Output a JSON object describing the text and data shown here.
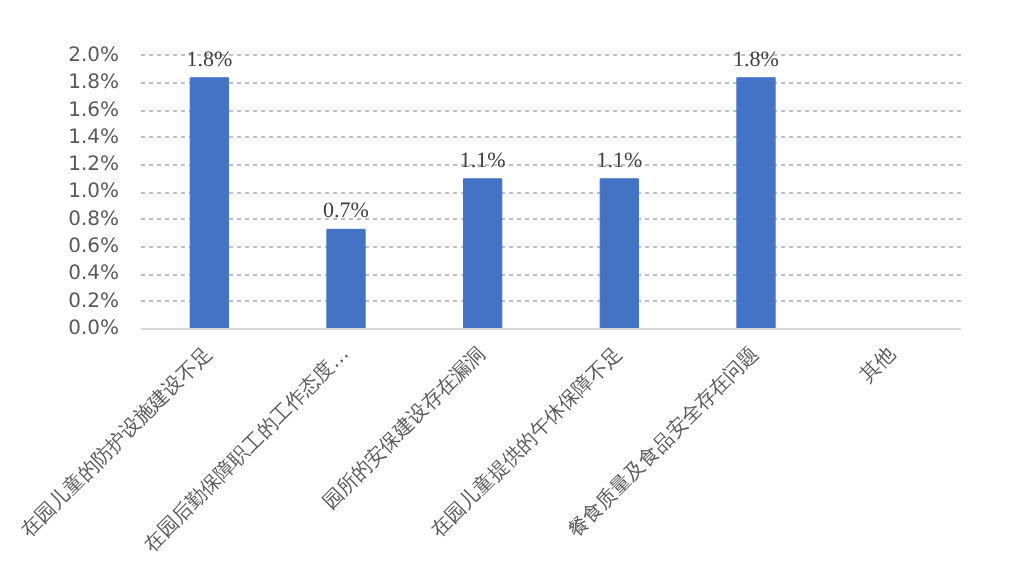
{
  "chart_data": {
    "type": "bar",
    "categories": [
      "在园儿童的防护设施建设不足",
      "在园后勤保障职工的工作态度…",
      "园所的安保建设存在漏洞",
      "在园儿童提供的午休保障不足",
      "餐食质量及食品安全存在问题",
      "其他"
    ],
    "values": [
      1.84,
      0.73,
      1.1,
      1.1,
      1.84,
      0
    ],
    "value_labels": [
      "1.8%",
      "0.7%",
      "1.1%",
      "1.1%",
      "1.8%",
      null
    ],
    "color": "#4472c4",
    "ylim": [
      0,
      2.0
    ],
    "yticks": [
      {
        "value": 0,
        "label": "0.0%"
      },
      {
        "value": 0.2,
        "label": "0.2%"
      },
      {
        "value": 0.4,
        "label": "0.4%"
      },
      {
        "value": 0.6,
        "label": "0.6%"
      },
      {
        "value": 0.8,
        "label": "0.8%"
      },
      {
        "value": 1.0,
        "label": "1.0%"
      },
      {
        "value": 1.2,
        "label": "1.2%"
      },
      {
        "value": 1.4,
        "label": "1.4%"
      },
      {
        "value": 1.6,
        "label": "1.6%"
      },
      {
        "value": 1.8,
        "label": "1.8%"
      },
      {
        "value": 2.0,
        "label": "2.0%"
      }
    ],
    "grid": "y"
  }
}
